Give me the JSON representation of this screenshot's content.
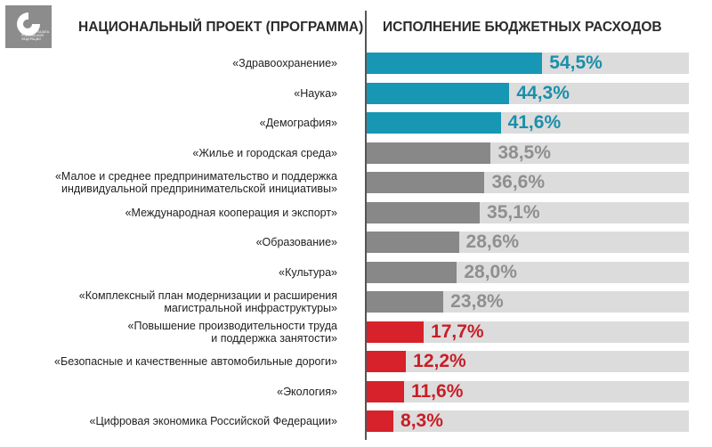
{
  "logo_text": "Счетная палата Российской Федерации",
  "chart_data": {
    "type": "bar",
    "orientation": "horizontal",
    "x_title": "НАЦИОНАЛЬНЫЙ ПРОЕКТ (ПРОГРАММА)",
    "value_title": "ИСПОЛНЕНИЕ БЮДЖЕТНЫХ РАСХОДОВ",
    "categories": [
      "«Здравоохранение»",
      "«Наука»",
      "«Демография»",
      "«Жилье и городская среда»",
      "«Малое и среднее предпринимательство и поддержка\nиндивидуальной предпринимательской инициативы»",
      "«Международная кооперация и экспорт»",
      "«Образование»",
      "«Культура»",
      "«Комплексный план модернизации и расширения\nмагистральной инфраструктуры»",
      "«Повышение производительности труда\nи поддержка занятости»",
      "«Безопасные и качественные автомобильные дороги»",
      "«Экология»",
      "«Цифровая экономика Российской Федерации»"
    ],
    "values": [
      54.5,
      44.3,
      41.6,
      38.5,
      36.6,
      35.1,
      28.6,
      28.0,
      23.8,
      17.7,
      12.2,
      11.6,
      8.3
    ],
    "value_labels": [
      "54,5%",
      "44,3%",
      "41,6%",
      "38,5%",
      "36,6%",
      "35,1%",
      "28,6%",
      "28,0%",
      "23,8%",
      "17,7%",
      "12,2%",
      "11,6%",
      "8,3%"
    ],
    "colors": [
      "#1797b3",
      "#1797b3",
      "#1797b3",
      "#888888",
      "#888888",
      "#888888",
      "#888888",
      "#888888",
      "#888888",
      "#d7212b",
      "#d7212b",
      "#d7212b",
      "#d7212b"
    ],
    "label_colors": [
      "#1a8fab",
      "#1a8fab",
      "#1a8fab",
      "#8f8f8f",
      "#8f8f8f",
      "#8f8f8f",
      "#8f8f8f",
      "#8f8f8f",
      "#8f8f8f",
      "#c71e27",
      "#c71e27",
      "#c71e27",
      "#c71e27"
    ],
    "xlim": [
      0,
      100
    ]
  }
}
